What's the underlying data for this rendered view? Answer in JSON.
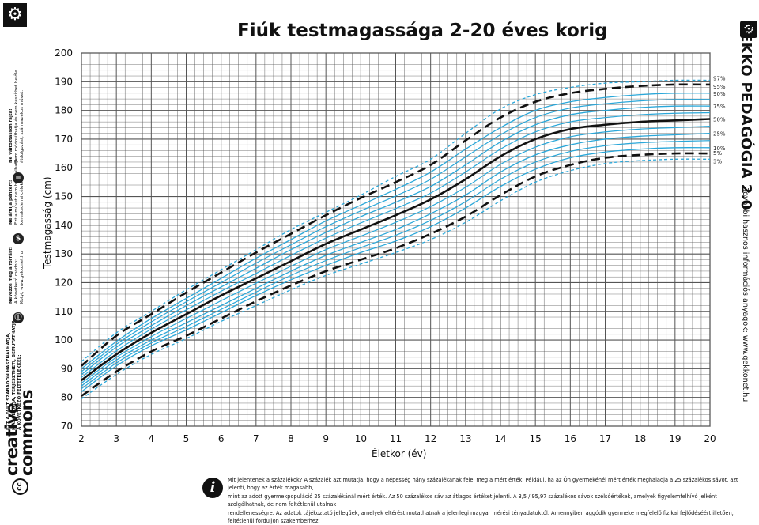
{
  "header": {
    "title": "Fiúk testmagassága 2-20 éves korig"
  },
  "left_panel": {
    "cc_logo": [
      "creative",
      "commons"
    ],
    "license": [
      "EZT A FÁJLT SZABADON HASZNÁLHATJA,",
      "MÁSOLHATJA, TERJESZTHETI, BEMUTATHATJA",
      "A KÖVETKEZŐ FELTÉTELEKKEL:"
    ],
    "notice_attribution_title": "Nevezze meg a forrást!",
    "notice_attribution_text": [
      "A következő módon:",
      "Kotyi, www.gekkonet.hu"
    ],
    "notice_nc_title": "Ne árulja pénzért!",
    "notice_nc_text": [
      "Ezt a művet nem használhatja",
      "kereskedelmi célokra."
    ],
    "notice_nd_title": "Ne változtasson rajta!",
    "notice_nd_text": [
      "Nem módosíthatja és nem készíthet belőle",
      "átdolgozást, származékos művet."
    ],
    "icons": [
      "attribution-icon",
      "no-money-icon",
      "no-derivatives-icon",
      "gear-icon"
    ]
  },
  "right_panel": {
    "brand": "GEKKO PEDAGÓGIA 2.0",
    "sub": "További hasznos információs anyagok: www.gekkonet.hu",
    "icon": "gear-icon"
  },
  "footer": {
    "icon": "info-icon",
    "lines": [
      "Mit jelentenek a százalékok? A százalék azt mutatja, hogy a népesség hány százalékának felel meg a mért érték. Például, ha az Ön gyermekénél mért érték meghaladja a 25 százalékos sávot, azt jelenti, hogy az érték magasabb,",
      "mint az adott gyermekpopuláció 25 százalékánál mért érték. Az 50 százalékos sáv az átlagos értéket jelenti. A 3,5 / 95,97 százalékos sávok szélsőértékek, amelyek figyelemfelhívó jelként szolgálhatnak, de nem feltétlenül utalnak",
      "rendellenességre. Az adatok tájékoztató jellegűek, amelyek eltérést mutathatnak a jelenlegi magyar mérési tényadatoktól. Amennyiben aggódik gyermeke megfelelő fizikai fejlődéséért illetően, feltétlenül forduljon szakemberhez!"
    ]
  },
  "colors": {
    "blue": "#2aa7d9",
    "black": "#111111",
    "grid": "#555555"
  },
  "chart_data": {
    "type": "line",
    "title": "Fiúk testmagassága 2-20 éves korig",
    "xlabel": "Életkor (év)",
    "ylabel": "Testmagasság (cm)",
    "xlim": [
      2,
      20
    ],
    "ylim": [
      70,
      200
    ],
    "xticks": [
      2,
      3,
      4,
      5,
      6,
      7,
      8,
      9,
      10,
      11,
      12,
      13,
      14,
      15,
      16,
      17,
      18,
      19,
      20
    ],
    "yticks": [
      70,
      80,
      90,
      100,
      110,
      120,
      130,
      140,
      150,
      160,
      170,
      180,
      190,
      200
    ],
    "grid": true,
    "x": [
      2,
      3,
      4,
      5,
      6,
      7,
      8,
      9,
      10,
      11,
      12,
      13,
      14,
      15,
      16,
      17,
      18,
      19,
      20
    ],
    "series": [
      {
        "name": "97%",
        "style": "blue-dashed",
        "values": [
          92.5,
          102.5,
          110,
          117.5,
          124.5,
          131.5,
          138.5,
          144.5,
          150.5,
          157,
          163,
          172,
          180.5,
          185.5,
          188,
          189.5,
          190,
          190.5,
          190.5
        ]
      },
      {
        "name": "95%",
        "style": "black-dashed",
        "values": [
          91,
          101.5,
          109,
          116.5,
          123.5,
          130.5,
          137,
          143.5,
          149.5,
          155,
          161,
          169.5,
          177.5,
          183,
          186,
          187.5,
          188.5,
          189,
          189
        ]
      },
      {
        "name": "90%",
        "style": "blue",
        "values": [
          90,
          99.5,
          107.5,
          114.5,
          121.5,
          128.5,
          135,
          141.5,
          147,
          152.5,
          158.5,
          166.5,
          174,
          180,
          183,
          184.5,
          185.5,
          186,
          186
        ]
      },
      {
        "name": "75%",
        "style": "blue",
        "values": [
          88,
          97.5,
          105,
          112,
          118.5,
          125,
          131.5,
          137.5,
          143,
          148,
          153.5,
          161,
          169,
          175,
          178.5,
          180,
          181,
          181.5,
          181.5
        ]
      },
      {
        "name": "50%",
        "style": "black",
        "values": [
          86,
          95,
          102.5,
          109,
          115.5,
          121.5,
          127.5,
          133.5,
          138.5,
          143.5,
          149,
          156,
          164,
          170,
          173.5,
          175,
          176,
          176.5,
          177
        ]
      },
      {
        "name": "25%",
        "style": "blue",
        "values": [
          84,
          93,
          100,
          106,
          112,
          118,
          124,
          129.5,
          134,
          138.5,
          144,
          150.5,
          158.5,
          164.5,
          168,
          170,
          171,
          171.5,
          172
        ]
      },
      {
        "name": "10%",
        "style": "blue",
        "values": [
          82,
          91,
          98,
          103.5,
          109.5,
          115.5,
          121,
          126,
          130.5,
          134.5,
          139.5,
          146,
          153.5,
          159.5,
          163.5,
          165.5,
          166.5,
          167,
          167
        ]
      },
      {
        "name": "5%",
        "style": "black-dashed",
        "values": [
          80.5,
          89,
          96,
          101.5,
          107.5,
          113.5,
          119,
          124,
          128,
          132,
          137,
          143,
          150.5,
          157,
          161,
          163.5,
          164.5,
          165,
          165
        ]
      },
      {
        "name": "3%",
        "style": "blue-dashed",
        "values": [
          79.5,
          88,
          95,
          100.5,
          106.5,
          112,
          117.5,
          122.5,
          126.5,
          130.5,
          135,
          141,
          148.5,
          155,
          159,
          161.5,
          162.5,
          163,
          163
        ]
      }
    ],
    "extra_blue_series": [
      {
        "values": [
          89,
          98.5,
          106.3,
          113.3,
          120,
          126.8,
          133.2,
          139.5,
          145,
          150.2,
          156,
          163.8,
          171.5,
          177.5,
          180.8,
          182.3,
          183.3,
          183.8,
          183.8
        ]
      },
      {
        "values": [
          87,
          96.2,
          103.8,
          110.5,
          117,
          123.2,
          129.5,
          135.5,
          140.8,
          145.8,
          151.2,
          158.5,
          166.5,
          172.5,
          176,
          177.5,
          178.5,
          179,
          179.2
        ]
      },
      {
        "values": [
          85,
          94,
          101.2,
          107.5,
          113.7,
          119.8,
          125.7,
          131.5,
          136.2,
          141,
          146.5,
          153.2,
          161.2,
          167.2,
          170.8,
          172.5,
          173.5,
          174,
          174.5
        ]
      },
      {
        "values": [
          83,
          92,
          99,
          104.7,
          110.7,
          116.7,
          122.5,
          127.7,
          132.2,
          136.5,
          141.7,
          148.2,
          156,
          162,
          165.7,
          167.7,
          168.7,
          169.2,
          169.5
        ]
      }
    ]
  }
}
